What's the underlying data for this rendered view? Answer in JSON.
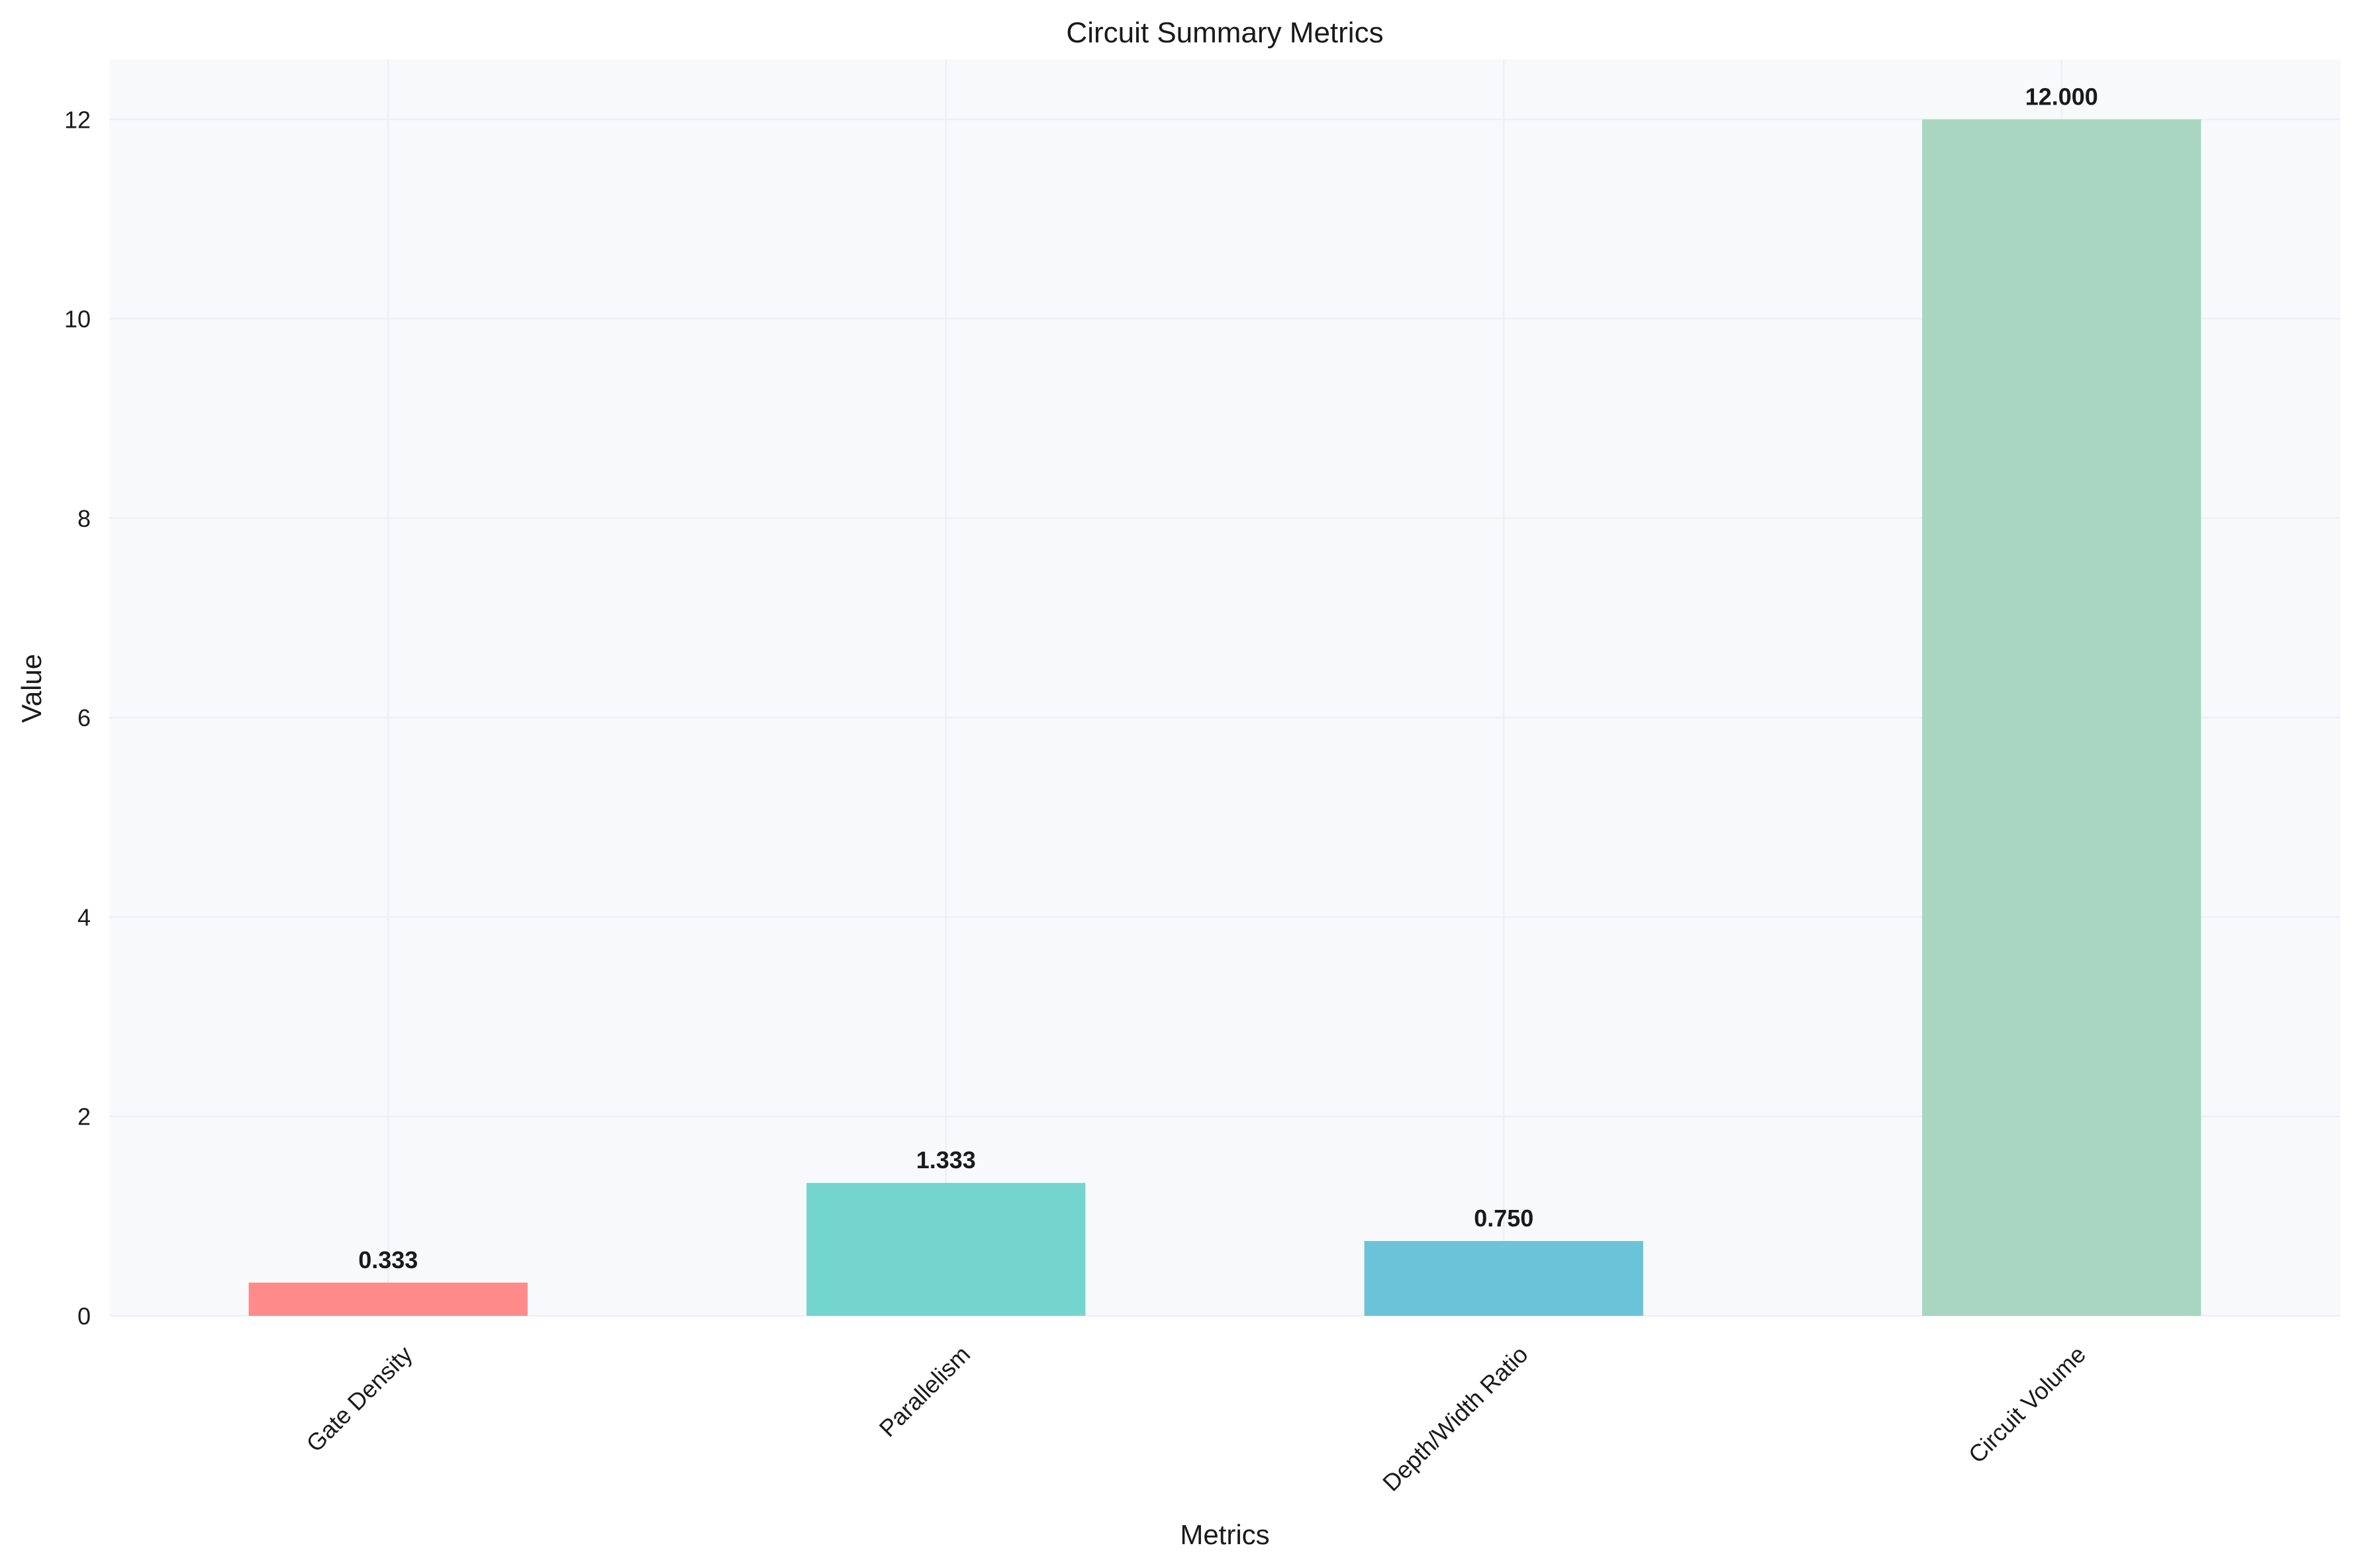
{
  "chart_data": {
    "type": "bar",
    "title": "Circuit Summary Metrics",
    "xlabel": "Metrics",
    "ylabel": "Value",
    "categories": [
      "Gate Density",
      "Parallelism",
      "Depth/Width Ratio",
      "Circuit Volume"
    ],
    "values": [
      0.333,
      1.333,
      0.75,
      12.0
    ],
    "value_labels": [
      "0.333",
      "1.333",
      "0.750",
      "12.000"
    ],
    "colors": [
      "#FF8A8A",
      "#74D5CE",
      "#6AC3D8",
      "#A8D6C1"
    ],
    "yticks": [
      0,
      2,
      4,
      6,
      8,
      10,
      12
    ],
    "ytick_labels": [
      "0",
      "2",
      "4",
      "6",
      "8",
      "10",
      "12"
    ],
    "ylim": [
      0,
      12.6
    ],
    "grid": true,
    "plot_background": "#F8F9FB",
    "grid_color": "#ECEEF1"
  }
}
